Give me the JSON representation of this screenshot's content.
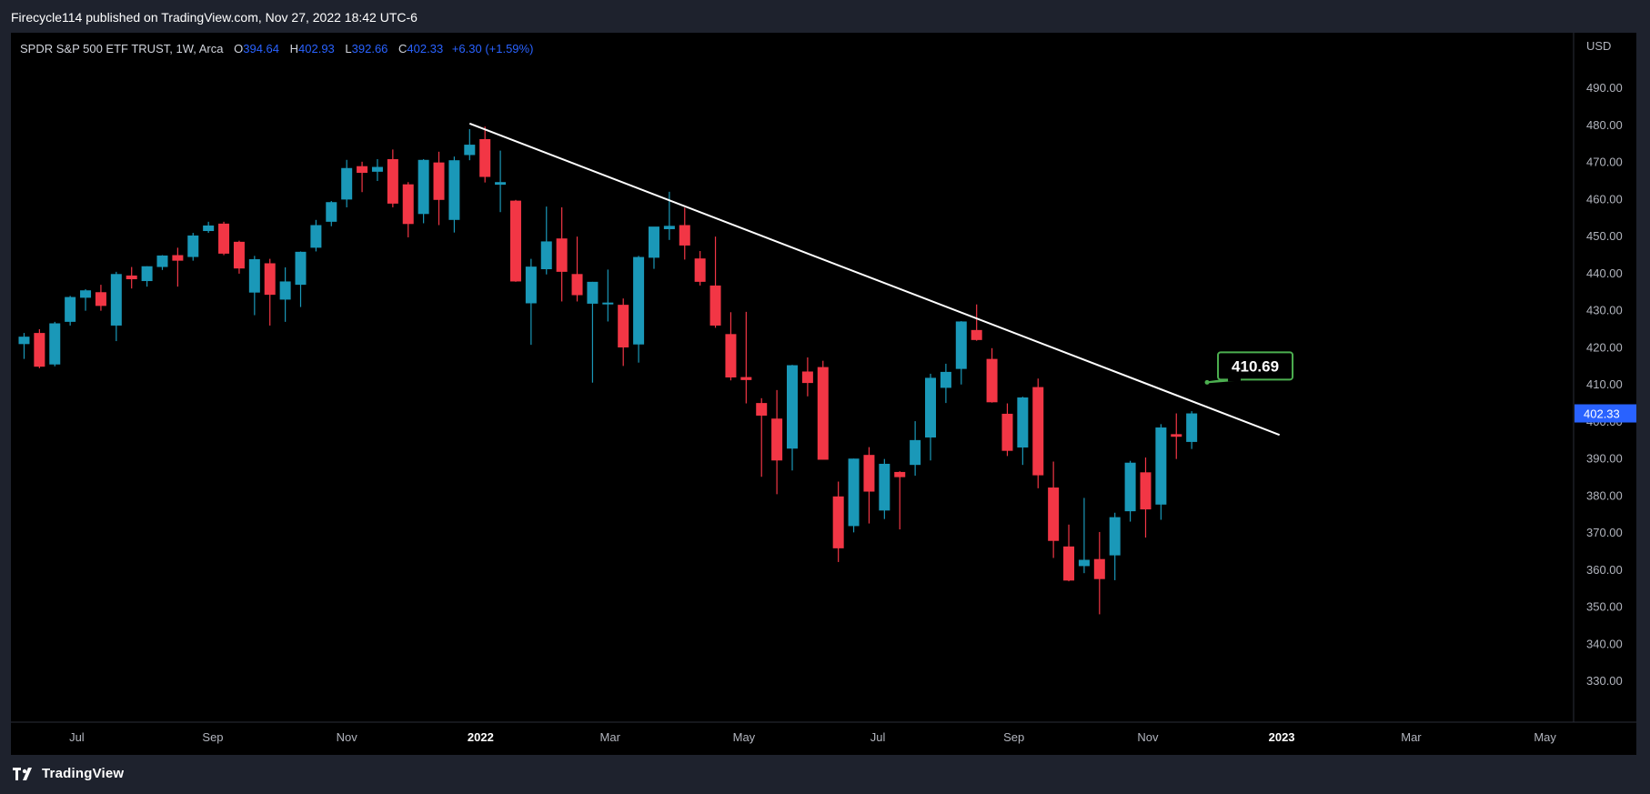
{
  "header": {
    "published": "Firecycle114 published on TradingView.com, Nov 27, 2022 18:42 UTC-6"
  },
  "footer": {
    "brand": "TradingView"
  },
  "legend": {
    "symbol": "SPDR S&P 500 ETF TRUST, 1W, Arca",
    "open_label": "O",
    "open": "394.64",
    "high_label": "H",
    "high": "402.93",
    "low_label": "L",
    "low": "392.66",
    "close_label": "C",
    "close": "402.33",
    "change": "+6.30 (+1.59%)"
  },
  "colors": {
    "up": "#1a98b8",
    "down": "#f23645",
    "trendline": "#ffffff",
    "callout_border": "#4caf50",
    "price_tag": "#2962ff"
  },
  "chart_data": {
    "type": "candlestick",
    "currency_label": "USD",
    "last_price_label": "402.33",
    "callout_label": "410.69",
    "ylim": [
      319,
      505
    ],
    "y_ticks": [
      "330.00",
      "340.00",
      "350.00",
      "360.00",
      "370.00",
      "380.00",
      "390.00",
      "400.00",
      "410.00",
      "420.00",
      "430.00",
      "440.00",
      "450.00",
      "460.00",
      "470.00",
      "480.00",
      "490.00"
    ],
    "x_ticks": [
      {
        "label": "Jul",
        "x": "2021-07-01",
        "bold": false
      },
      {
        "label": "Sep",
        "x": "2021-09-01",
        "bold": false
      },
      {
        "label": "Nov",
        "x": "2021-11-01",
        "bold": false
      },
      {
        "label": "2022",
        "x": "2022-01-01",
        "bold": true
      },
      {
        "label": "Mar",
        "x": "2022-03-01",
        "bold": false
      },
      {
        "label": "May",
        "x": "2022-05-01",
        "bold": false
      },
      {
        "label": "Jul",
        "x": "2022-07-01",
        "bold": false
      },
      {
        "label": "Sep",
        "x": "2022-09-01",
        "bold": false
      },
      {
        "label": "Nov",
        "x": "2022-11-01",
        "bold": false
      },
      {
        "label": "2023",
        "x": "2023-01-01",
        "bold": true
      },
      {
        "label": "Mar",
        "x": "2023-03-01",
        "bold": false
      },
      {
        "label": "May",
        "x": "2023-05-01",
        "bold": false
      }
    ],
    "xlim": [
      "2021-06-01",
      "2023-05-14"
    ],
    "trendline": {
      "x1": "2021-12-27",
      "y1": 480.5,
      "x2": "2022-12-31",
      "y2": 396.5
    },
    "callout": {
      "x": "2022-11-28",
      "y": 410.69
    },
    "candles": [
      {
        "d": "2021-06-07",
        "o": 421.0,
        "h": 424.0,
        "l": 417.0,
        "c": 423.0
      },
      {
        "d": "2021-06-14",
        "o": 424.0,
        "h": 425.0,
        "l": 414.5,
        "c": 414.9
      },
      {
        "d": "2021-06-21",
        "o": 415.5,
        "h": 427.0,
        "l": 415.0,
        "c": 426.6
      },
      {
        "d": "2021-06-28",
        "o": 427.0,
        "h": 434.0,
        "l": 426.0,
        "c": 433.7
      },
      {
        "d": "2021-07-05",
        "o": 433.5,
        "h": 435.8,
        "l": 430.0,
        "c": 435.5
      },
      {
        "d": "2021-07-12",
        "o": 435.0,
        "h": 437.0,
        "l": 430.0,
        "c": 431.3
      },
      {
        "d": "2021-07-19",
        "o": 426.0,
        "h": 440.5,
        "l": 421.8,
        "c": 439.9
      },
      {
        "d": "2021-07-26",
        "o": 439.5,
        "h": 441.8,
        "l": 436.0,
        "c": 438.5
      },
      {
        "d": "2021-08-02",
        "o": 438.0,
        "h": 442.0,
        "l": 436.5,
        "c": 442.0
      },
      {
        "d": "2021-08-09",
        "o": 441.8,
        "h": 445.0,
        "l": 441.0,
        "c": 444.9
      },
      {
        "d": "2021-08-16",
        "o": 445.0,
        "h": 447.0,
        "l": 436.5,
        "c": 443.5
      },
      {
        "d": "2021-08-23",
        "o": 444.5,
        "h": 451.0,
        "l": 443.5,
        "c": 450.3
      },
      {
        "d": "2021-08-30",
        "o": 451.5,
        "h": 454.0,
        "l": 451.0,
        "c": 453.0
      },
      {
        "d": "2021-09-06",
        "o": 453.5,
        "h": 454.0,
        "l": 445.0,
        "c": 445.4
      },
      {
        "d": "2021-09-13",
        "o": 448.6,
        "h": 448.9,
        "l": 440.0,
        "c": 441.4
      },
      {
        "d": "2021-09-20",
        "o": 434.9,
        "h": 444.8,
        "l": 428.8,
        "c": 443.9
      },
      {
        "d": "2021-09-27",
        "o": 442.8,
        "h": 444.0,
        "l": 426.0,
        "c": 434.3
      },
      {
        "d": "2021-10-04",
        "o": 433.0,
        "h": 441.7,
        "l": 427.0,
        "c": 437.9
      },
      {
        "d": "2021-10-11",
        "o": 437.0,
        "h": 446.0,
        "l": 431.0,
        "c": 445.9
      },
      {
        "d": "2021-10-18",
        "o": 447.0,
        "h": 454.5,
        "l": 446.0,
        "c": 453.1
      },
      {
        "d": "2021-10-25",
        "o": 454.0,
        "h": 459.6,
        "l": 452.8,
        "c": 459.3
      },
      {
        "d": "2021-11-01",
        "o": 460.0,
        "h": 470.7,
        "l": 457.9,
        "c": 468.5
      },
      {
        "d": "2021-11-08",
        "o": 469.0,
        "h": 470.2,
        "l": 462.0,
        "c": 467.2
      },
      {
        "d": "2021-11-15",
        "o": 467.5,
        "h": 470.9,
        "l": 465.0,
        "c": 468.8
      },
      {
        "d": "2021-11-22",
        "o": 470.9,
        "h": 473.5,
        "l": 457.9,
        "c": 458.9
      },
      {
        "d": "2021-11-29",
        "o": 464.1,
        "h": 464.7,
        "l": 449.8,
        "c": 453.4
      },
      {
        "d": "2021-12-06",
        "o": 456.1,
        "h": 470.9,
        "l": 453.6,
        "c": 470.7
      },
      {
        "d": "2021-12-13",
        "o": 470.0,
        "h": 472.9,
        "l": 453.1,
        "c": 459.9
      },
      {
        "d": "2021-12-20",
        "o": 454.5,
        "h": 471.6,
        "l": 451.1,
        "c": 470.6
      },
      {
        "d": "2021-12-27",
        "o": 472.0,
        "h": 479.0,
        "l": 470.6,
        "c": 474.8
      },
      {
        "d": "2022-01-03",
        "o": 476.3,
        "h": 479.7,
        "l": 464.6,
        "c": 466.1
      },
      {
        "d": "2022-01-10",
        "o": 464.0,
        "h": 473.2,
        "l": 456.6,
        "c": 464.7
      },
      {
        "d": "2022-01-17",
        "o": 459.7,
        "h": 459.9,
        "l": 437.8,
        "c": 437.9
      },
      {
        "d": "2022-01-24",
        "o": 432.0,
        "h": 444.0,
        "l": 420.8,
        "c": 441.9
      },
      {
        "d": "2022-01-31",
        "o": 441.2,
        "h": 458.1,
        "l": 439.8,
        "c": 448.7
      },
      {
        "d": "2022-02-07",
        "o": 449.5,
        "h": 457.9,
        "l": 432.5,
        "c": 440.5
      },
      {
        "d": "2022-02-14",
        "o": 439.9,
        "h": 450.0,
        "l": 432.5,
        "c": 434.2
      },
      {
        "d": "2022-02-21",
        "o": 431.9,
        "h": 437.8,
        "l": 410.6,
        "c": 437.8
      },
      {
        "d": "2022-02-28",
        "o": 432.0,
        "h": 441.1,
        "l": 427.1,
        "c": 432.2
      },
      {
        "d": "2022-03-07",
        "o": 431.6,
        "h": 433.3,
        "l": 415.1,
        "c": 420.1
      },
      {
        "d": "2022-03-14",
        "o": 420.9,
        "h": 444.8,
        "l": 416.0,
        "c": 444.5
      },
      {
        "d": "2022-03-21",
        "o": 444.3,
        "h": 452.0,
        "l": 441.3,
        "c": 452.7
      },
      {
        "d": "2022-03-28",
        "o": 452.0,
        "h": 462.1,
        "l": 449.1,
        "c": 452.9
      },
      {
        "d": "2022-04-04",
        "o": 453.1,
        "h": 457.8,
        "l": 443.8,
        "c": 447.6
      },
      {
        "d": "2022-04-11",
        "o": 444.1,
        "h": 446.1,
        "l": 436.8,
        "c": 437.8
      },
      {
        "d": "2022-04-18",
        "o": 436.8,
        "h": 450.0,
        "l": 425.4,
        "c": 426.0
      },
      {
        "d": "2022-04-25",
        "o": 423.7,
        "h": 429.6,
        "l": 411.2,
        "c": 412.0
      },
      {
        "d": "2022-05-02",
        "o": 412.1,
        "h": 429.7,
        "l": 405.0,
        "c": 411.3
      },
      {
        "d": "2022-05-09",
        "o": 405.1,
        "h": 406.4,
        "l": 385.2,
        "c": 401.7
      },
      {
        "d": "2022-05-16",
        "o": 400.9,
        "h": 408.6,
        "l": 380.5,
        "c": 389.6
      },
      {
        "d": "2022-05-23",
        "o": 392.8,
        "h": 415.4,
        "l": 386.9,
        "c": 415.3
      },
      {
        "d": "2022-05-30",
        "o": 413.6,
        "h": 417.4,
        "l": 406.9,
        "c": 410.5
      },
      {
        "d": "2022-06-06",
        "o": 414.8,
        "h": 416.5,
        "l": 389.8,
        "c": 389.8
      },
      {
        "d": "2022-06-13",
        "o": 379.9,
        "h": 383.9,
        "l": 362.2,
        "c": 365.9
      },
      {
        "d": "2022-06-20",
        "o": 371.9,
        "h": 390.1,
        "l": 370.2,
        "c": 390.1
      },
      {
        "d": "2022-06-27",
        "o": 391.1,
        "h": 393.2,
        "l": 372.6,
        "c": 381.2
      },
      {
        "d": "2022-07-04",
        "o": 376.1,
        "h": 390.0,
        "l": 373.8,
        "c": 388.7
      },
      {
        "d": "2022-07-11",
        "o": 386.5,
        "h": 386.7,
        "l": 371.0,
        "c": 385.1
      },
      {
        "d": "2022-07-18",
        "o": 388.4,
        "h": 400.2,
        "l": 385.5,
        "c": 395.1
      },
      {
        "d": "2022-07-25",
        "o": 395.8,
        "h": 413.0,
        "l": 389.6,
        "c": 411.9
      },
      {
        "d": "2022-08-01",
        "o": 409.2,
        "h": 415.7,
        "l": 405.1,
        "c": 413.5
      },
      {
        "d": "2022-08-08",
        "o": 414.3,
        "h": 427.2,
        "l": 410.1,
        "c": 427.1
      },
      {
        "d": "2022-08-15",
        "o": 424.8,
        "h": 431.7,
        "l": 421.9,
        "c": 422.1
      },
      {
        "d": "2022-08-22",
        "o": 417.0,
        "h": 419.9,
        "l": 405.2,
        "c": 405.3
      },
      {
        "d": "2022-08-29",
        "o": 402.2,
        "h": 405.0,
        "l": 390.8,
        "c": 392.2
      },
      {
        "d": "2022-09-05",
        "o": 393.1,
        "h": 406.8,
        "l": 388.4,
        "c": 406.6
      },
      {
        "d": "2022-09-12",
        "o": 409.4,
        "h": 411.7,
        "l": 382.1,
        "c": 385.6
      },
      {
        "d": "2022-09-19",
        "o": 382.3,
        "h": 389.3,
        "l": 363.3,
        "c": 367.9
      },
      {
        "d": "2022-09-26",
        "o": 366.4,
        "h": 372.3,
        "l": 357.0,
        "c": 357.2
      },
      {
        "d": "2022-10-03",
        "o": 361.1,
        "h": 379.5,
        "l": 359.2,
        "c": 362.8
      },
      {
        "d": "2022-10-10",
        "o": 363.0,
        "h": 370.3,
        "l": 348.1,
        "c": 357.6
      },
      {
        "d": "2022-10-17",
        "o": 364.0,
        "h": 375.5,
        "l": 357.3,
        "c": 374.3
      },
      {
        "d": "2022-10-24",
        "o": 375.9,
        "h": 389.5,
        "l": 373.1,
        "c": 389.0
      },
      {
        "d": "2022-10-31",
        "o": 386.4,
        "h": 390.4,
        "l": 368.8,
        "c": 376.4
      },
      {
        "d": "2022-11-07",
        "o": 377.7,
        "h": 399.4,
        "l": 373.6,
        "c": 398.5
      },
      {
        "d": "2022-11-14",
        "o": 396.7,
        "h": 402.3,
        "l": 390.0,
        "c": 396.0
      },
      {
        "d": "2022-11-21",
        "o": 394.6,
        "h": 402.9,
        "l": 392.7,
        "c": 402.3
      }
    ]
  }
}
